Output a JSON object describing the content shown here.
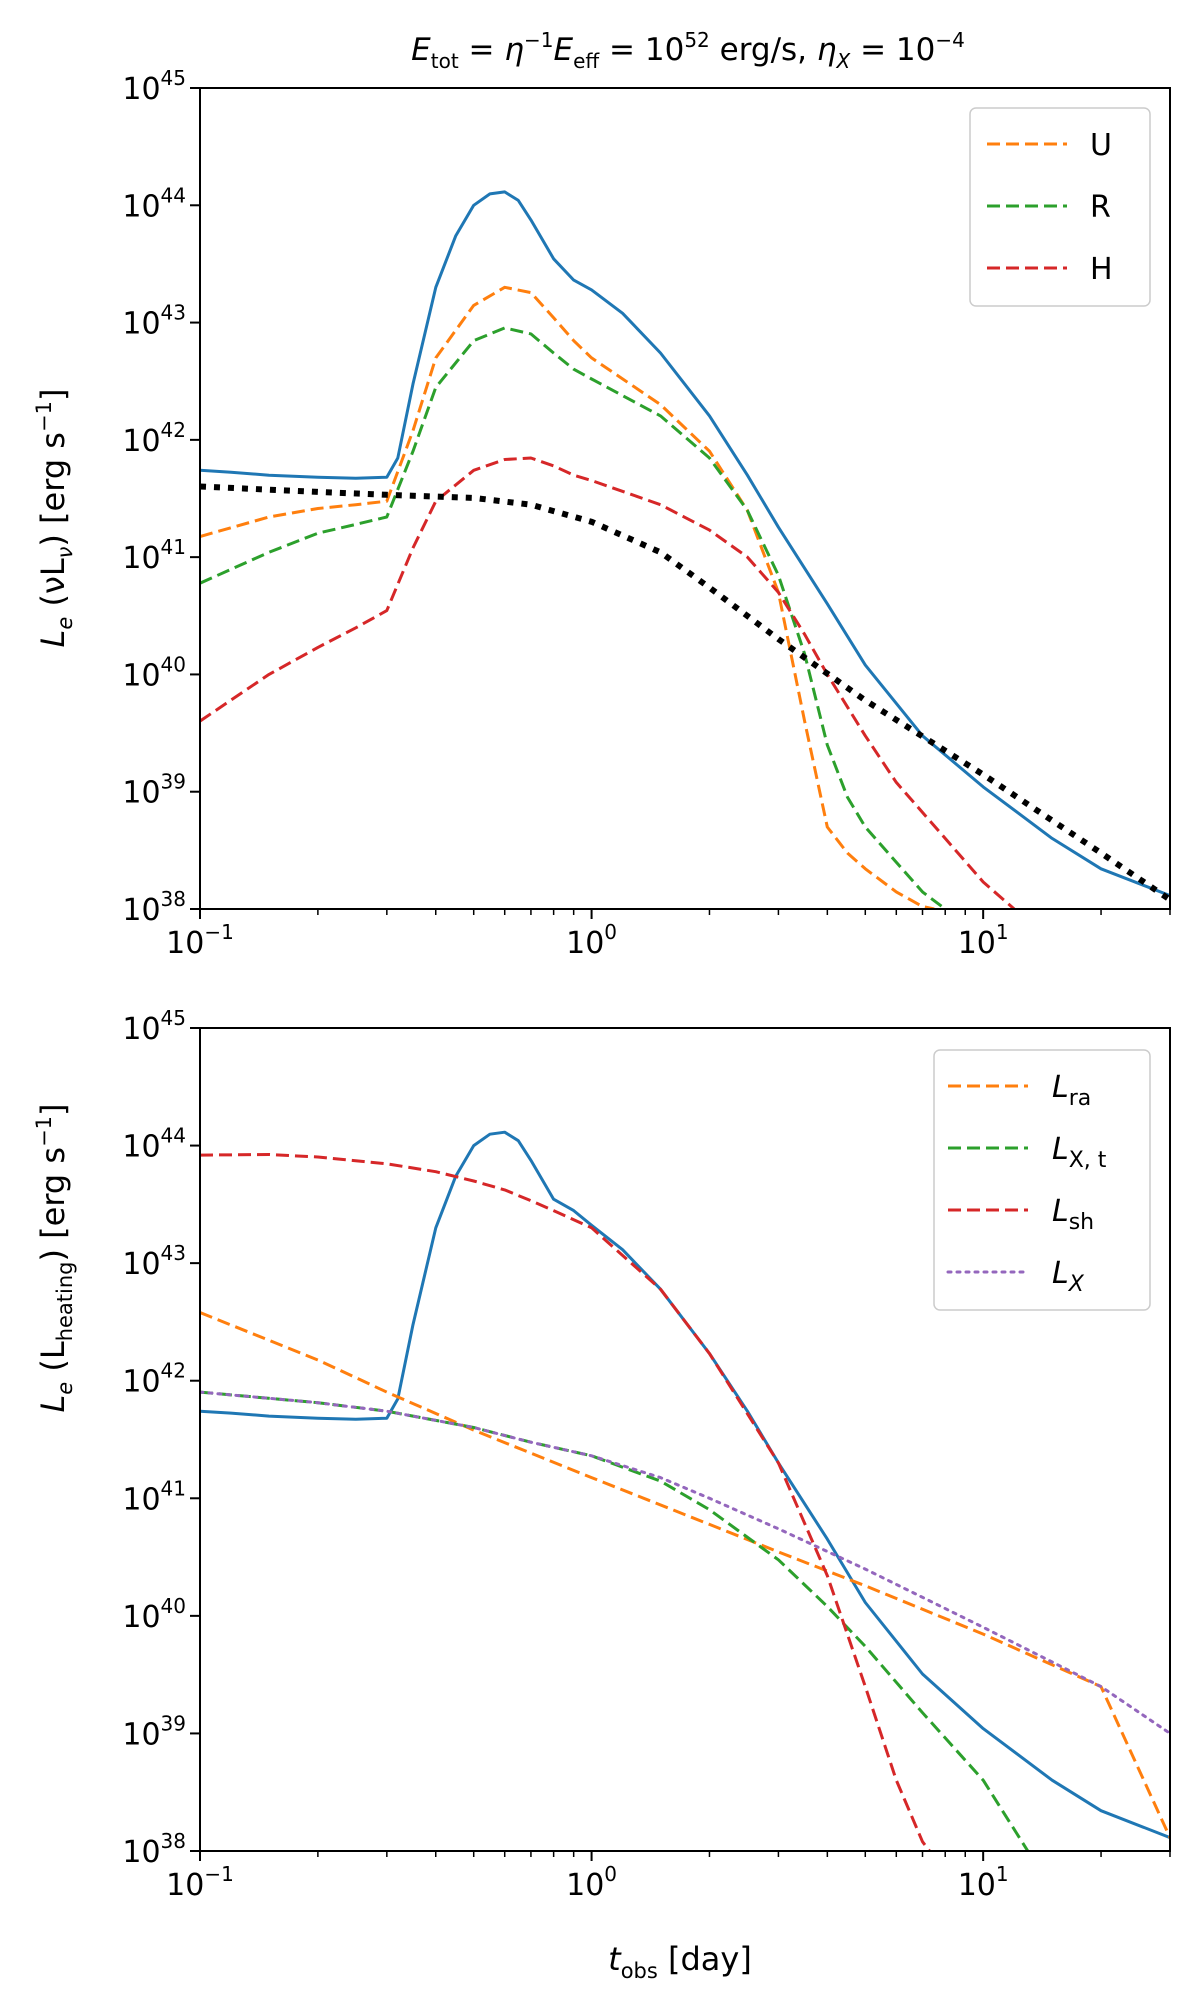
{
  "chart_data": [
    {
      "type": "line",
      "title": {
        "e1": "E",
        "e1_sub": "tot",
        "eq1": " = ",
        "eta": "η",
        "eta_sup": "−1",
        "e2": "E",
        "e2_sub": "eff",
        "eq2": " = 10",
        "exp": "52",
        "unit": " erg/s,  ",
        "etax": "η",
        "etax_sub": "X",
        "eq3": " = 10",
        "exp2": "−4"
      },
      "xlabel": "",
      "ylabel": {
        "L": "L",
        "L_sub": "e",
        "rest": " (νL",
        "nu_sub": "ν",
        "close": ") [erg s",
        "sup": "−1",
        "end": "]"
      },
      "xscale": "log",
      "yscale": "log",
      "xlim": [
        0.1,
        30
      ],
      "ylim": [
        1e+38,
        1e+45
      ],
      "x_ticks": [
        {
          "base": "10",
          "exp": "−1"
        },
        {
          "base": "10",
          "exp": "0"
        },
        {
          "base": "10",
          "exp": "1"
        }
      ],
      "y_ticks": [
        {
          "base": "10",
          "exp": "38"
        },
        {
          "base": "10",
          "exp": "39"
        },
        {
          "base": "10",
          "exp": "40"
        },
        {
          "base": "10",
          "exp": "41"
        },
        {
          "base": "10",
          "exp": "42"
        },
        {
          "base": "10",
          "exp": "43"
        },
        {
          "base": "10",
          "exp": "44"
        },
        {
          "base": "10",
          "exp": "45"
        }
      ],
      "legend_position": "top-right",
      "series": [
        {
          "name": "total",
          "legend": false,
          "color": "#1f77b4",
          "style": "solid",
          "x": [
            0.1,
            0.12,
            0.15,
            0.2,
            0.25,
            0.3,
            0.32,
            0.35,
            0.4,
            0.45,
            0.5,
            0.55,
            0.6,
            0.65,
            0.7,
            0.8,
            0.9,
            1.0,
            1.2,
            1.5,
            2.0,
            2.5,
            3.0,
            4.0,
            5.0,
            7.0,
            10,
            15,
            20,
            30
          ],
          "y": [
            5.5e+41,
            5.3e+41,
            5e+41,
            4.8e+41,
            4.7e+41,
            4.8e+41,
            7e+41,
            3e+42,
            2e+43,
            5.5e+43,
            1e+44,
            1.25e+44,
            1.3e+44,
            1.1e+44,
            7.5e+43,
            3.5e+43,
            2.3e+43,
            1.9e+43,
            1.2e+43,
            5.5e+42,
            1.6e+42,
            5e+41,
            1.8e+41,
            4e+40,
            1.2e+40,
            3e+39,
            1.1e+39,
            4e+38,
            2.2e+38,
            1.3e+38
          ]
        },
        {
          "name": "U",
          "legend": true,
          "color": "#ff7f0e",
          "style": "dashed",
          "x": [
            0.1,
            0.15,
            0.2,
            0.25,
            0.3,
            0.35,
            0.4,
            0.5,
            0.6,
            0.7,
            0.8,
            0.9,
            1.0,
            1.5,
            2.0,
            2.5,
            3.0,
            3.5,
            4.0,
            4.5,
            5.0,
            6.0,
            7.0,
            7.5
          ],
          "y": [
            1.5e+41,
            2.2e+41,
            2.6e+41,
            2.8e+41,
            3e+41,
            1.2e+42,
            5e+42,
            1.4e+43,
            2e+43,
            1.8e+43,
            1.1e+43,
            7e+42,
            5e+42,
            2e+42,
            8e+41,
            2.5e+41,
            5e+40,
            4e+39,
            5e+38,
            3e+38,
            2.2e+38,
            1.4e+38,
            1.05e+38,
            1e+38
          ]
        },
        {
          "name": "R",
          "legend": true,
          "color": "#2ca02c",
          "style": "dashed",
          "x": [
            0.1,
            0.15,
            0.2,
            0.25,
            0.3,
            0.35,
            0.4,
            0.5,
            0.6,
            0.7,
            0.8,
            0.9,
            1.0,
            1.5,
            2.0,
            2.5,
            3.0,
            3.5,
            4.0,
            4.5,
            5.0,
            6.0,
            7.0,
            8.0
          ],
          "y": [
            6e+40,
            1.1e+41,
            1.6e+41,
            1.9e+41,
            2.2e+41,
            8e+41,
            2.8e+42,
            7e+42,
            9e+42,
            8e+42,
            5.5e+42,
            4e+42,
            3.3e+42,
            1.6e+42,
            7e+41,
            2.5e+41,
            7e+40,
            1.5e+40,
            2.5e+39,
            9e+38,
            5e+38,
            2.5e+38,
            1.4e+38,
            1e+38
          ]
        },
        {
          "name": "H",
          "legend": true,
          "color": "#d62728",
          "style": "dashed",
          "x": [
            0.1,
            0.15,
            0.2,
            0.25,
            0.3,
            0.35,
            0.4,
            0.5,
            0.6,
            0.7,
            0.8,
            0.9,
            1.0,
            1.5,
            2.0,
            2.5,
            3.0,
            3.5,
            4.0,
            5.0,
            6.0,
            8.0,
            10,
            12
          ],
          "y": [
            4e+39,
            1e+40,
            1.7e+40,
            2.5e+40,
            3.5e+40,
            1.2e+41,
            3e+41,
            5.5e+41,
            6.8e+41,
            7e+41,
            6e+41,
            5e+41,
            4.5e+41,
            2.8e+41,
            1.7e+41,
            1e+41,
            5e+40,
            2.2e+40,
            1e+40,
            3e+39,
            1.2e+39,
            4e+38,
            1.7e+38,
            1e+38
          ]
        },
        {
          "name": "black-dotted",
          "legend": false,
          "color": "#000000",
          "style": "dotted",
          "x": [
            0.1,
            0.2,
            0.3,
            0.5,
            0.7,
            1.0,
            1.5,
            2.0,
            3.0,
            5.0,
            10,
            20,
            30
          ],
          "y": [
            4e+41,
            3.6e+41,
            3.4e+41,
            3.2e+41,
            2.8e+41,
            2e+41,
            1.1e+41,
            5.5e+40,
            2e+40,
            6e+39,
            1.4e+39,
            3e+38,
            1.2e+38
          ]
        }
      ],
      "legend": [
        {
          "label": "U",
          "sub": "",
          "color": "#ff7f0e",
          "style": "dashed",
          "italic": false
        },
        {
          "label": "R",
          "sub": "",
          "color": "#2ca02c",
          "style": "dashed",
          "italic": false
        },
        {
          "label": "H",
          "sub": "",
          "color": "#d62728",
          "style": "dashed",
          "italic": false
        }
      ]
    },
    {
      "type": "line",
      "title": "",
      "xlabel": {
        "t": "t",
        "t_sub": "obs",
        "rest": " [day]"
      },
      "ylabel": {
        "L": "L",
        "L_sub": "e",
        "rest": " (L",
        "heat_sub": "heating",
        "close": ") [erg s",
        "sup": "−1",
        "end": "]"
      },
      "xscale": "log",
      "yscale": "log",
      "xlim": [
        0.1,
        30
      ],
      "ylim": [
        1e+38,
        1e+45
      ],
      "x_ticks": [
        {
          "base": "10",
          "exp": "−1"
        },
        {
          "base": "10",
          "exp": "0"
        },
        {
          "base": "10",
          "exp": "1"
        }
      ],
      "y_ticks": [
        {
          "base": "10",
          "exp": "38"
        },
        {
          "base": "10",
          "exp": "39"
        },
        {
          "base": "10",
          "exp": "40"
        },
        {
          "base": "10",
          "exp": "41"
        },
        {
          "base": "10",
          "exp": "42"
        },
        {
          "base": "10",
          "exp": "43"
        },
        {
          "base": "10",
          "exp": "44"
        },
        {
          "base": "10",
          "exp": "45"
        }
      ],
      "legend_position": "top-right",
      "series": [
        {
          "name": "total",
          "legend": false,
          "color": "#1f77b4",
          "style": "solid",
          "x": [
            0.1,
            0.12,
            0.15,
            0.2,
            0.25,
            0.3,
            0.32,
            0.35,
            0.4,
            0.45,
            0.5,
            0.55,
            0.6,
            0.65,
            0.7,
            0.8,
            0.9,
            1.0,
            1.2,
            1.5,
            2.0,
            2.5,
            3.0,
            4.0,
            5.0,
            7.0,
            10,
            15,
            20,
            30
          ],
          "y": [
            5.5e+41,
            5.3e+41,
            5e+41,
            4.8e+41,
            4.7e+41,
            4.8e+41,
            7e+41,
            3e+42,
            2e+43,
            5.5e+43,
            1e+44,
            1.25e+44,
            1.3e+44,
            1.1e+44,
            7.5e+43,
            3.5e+43,
            2.8e+43,
            2.1e+43,
            1.3e+43,
            6e+42,
            1.7e+42,
            5.5e+41,
            2e+41,
            4.5e+40,
            1.3e+40,
            3.2e+39,
            1.1e+39,
            4e+38,
            2.2e+38,
            1.3e+38
          ]
        },
        {
          "name": "L_ra",
          "legend": true,
          "color": "#ff7f0e",
          "style": "dashed",
          "x": [
            0.1,
            0.2,
            0.3,
            0.5,
            1.0,
            2.0,
            3.0,
            5.0,
            10,
            20,
            30
          ],
          "y": [
            3.8e+42,
            1.5e+42,
            8e+41,
            3.8e+41,
            1.5e+41,
            6e+40,
            3.5e+40,
            1.8e+40,
            7e+39,
            2.5e+39,
            1.3e+38
          ]
        },
        {
          "name": "L_X,t",
          "legend": true,
          "color": "#2ca02c",
          "style": "dashed",
          "x": [
            0.1,
            0.2,
            0.3,
            0.5,
            0.7,
            1.0,
            1.5,
            2.0,
            3.0,
            4.0,
            5.0,
            7.0,
            10,
            13
          ],
          "y": [
            8e+41,
            6.5e+41,
            5.5e+41,
            4e+41,
            3e+41,
            2.3e+41,
            1.4e+41,
            8e+40,
            3e+40,
            1.2e+40,
            5.5e+39,
            1.5e+39,
            4e+38,
            1e+38
          ]
        },
        {
          "name": "L_sh",
          "legend": true,
          "color": "#d62728",
          "style": "dashed",
          "x": [
            0.1,
            0.15,
            0.2,
            0.3,
            0.4,
            0.5,
            0.6,
            0.7,
            0.8,
            1.0,
            1.5,
            2.0,
            3.0,
            4.0,
            5.0,
            6.0,
            7.0,
            7.3
          ],
          "y": [
            8.3e+43,
            8.4e+43,
            8e+43,
            7e+43,
            6e+43,
            5e+43,
            4.2e+43,
            3.4e+43,
            2.8e+43,
            2e+43,
            6e+42,
            1.7e+42,
            2e+41,
            2.2e+40,
            2.5e+39,
            4e+38,
            1.2e+38,
            1e+38
          ]
        },
        {
          "name": "L_X",
          "legend": true,
          "color": "#9467bd",
          "style": "dotted",
          "x": [
            0.1,
            0.2,
            0.3,
            0.5,
            0.7,
            1.0,
            1.5,
            2.0,
            3.0,
            5.0,
            10,
            20,
            30
          ],
          "y": [
            8e+41,
            6.5e+41,
            5.5e+41,
            4e+41,
            3e+41,
            2.3e+41,
            1.5e+41,
            1e+41,
            5.5e+40,
            2.5e+40,
            8e+39,
            2.5e+39,
            1e+39
          ]
        }
      ],
      "legend": [
        {
          "label": "L",
          "sub": "ra",
          "color": "#ff7f0e",
          "style": "dashed",
          "italic": true
        },
        {
          "label": "L",
          "sub": "X, t",
          "color": "#2ca02c",
          "style": "dashed",
          "italic": true
        },
        {
          "label": "L",
          "sub": "sh",
          "color": "#d62728",
          "style": "dashed",
          "italic": true
        },
        {
          "label": "L",
          "sub": "X",
          "color": "#9467bd",
          "style": "dotted",
          "italic": true,
          "sub_italic": true
        }
      ]
    }
  ]
}
